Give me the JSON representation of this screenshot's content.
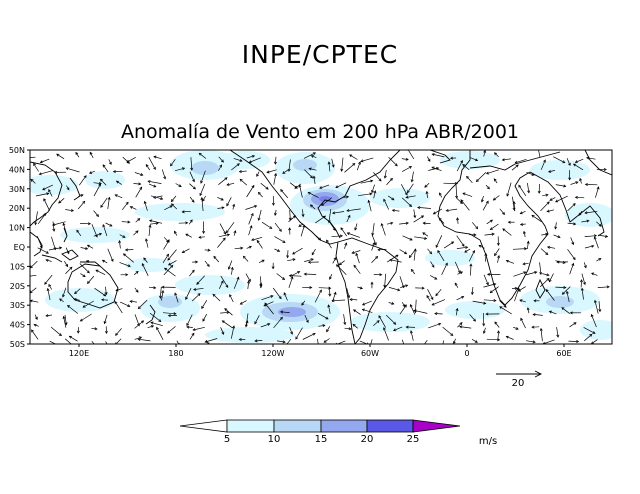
{
  "header": {
    "title": "INPE/CPTEC",
    "subtitle": "Anomalía de Vento em 200 hPa ABR/2001"
  },
  "map": {
    "lat_labels": [
      "50N",
      "40N",
      "30N",
      "20N",
      "10N",
      "EQ",
      "10S",
      "20S",
      "30S",
      "40S",
      "50S"
    ],
    "lon_labels": [
      "120E",
      "180",
      "120W",
      "60W",
      "0",
      "60E"
    ],
    "land_color": "#000000",
    "frame_color": "#000000"
  },
  "reference_vector": {
    "value": "20"
  },
  "colorbar": {
    "unit": "m/s",
    "ticks": [
      "5",
      "10",
      "15",
      "20",
      "25"
    ],
    "colors": [
      "#ffffff",
      "#d9f7ff",
      "#b8d8f5",
      "#93a8ef",
      "#5a58e6",
      "#a800c8"
    ]
  }
}
